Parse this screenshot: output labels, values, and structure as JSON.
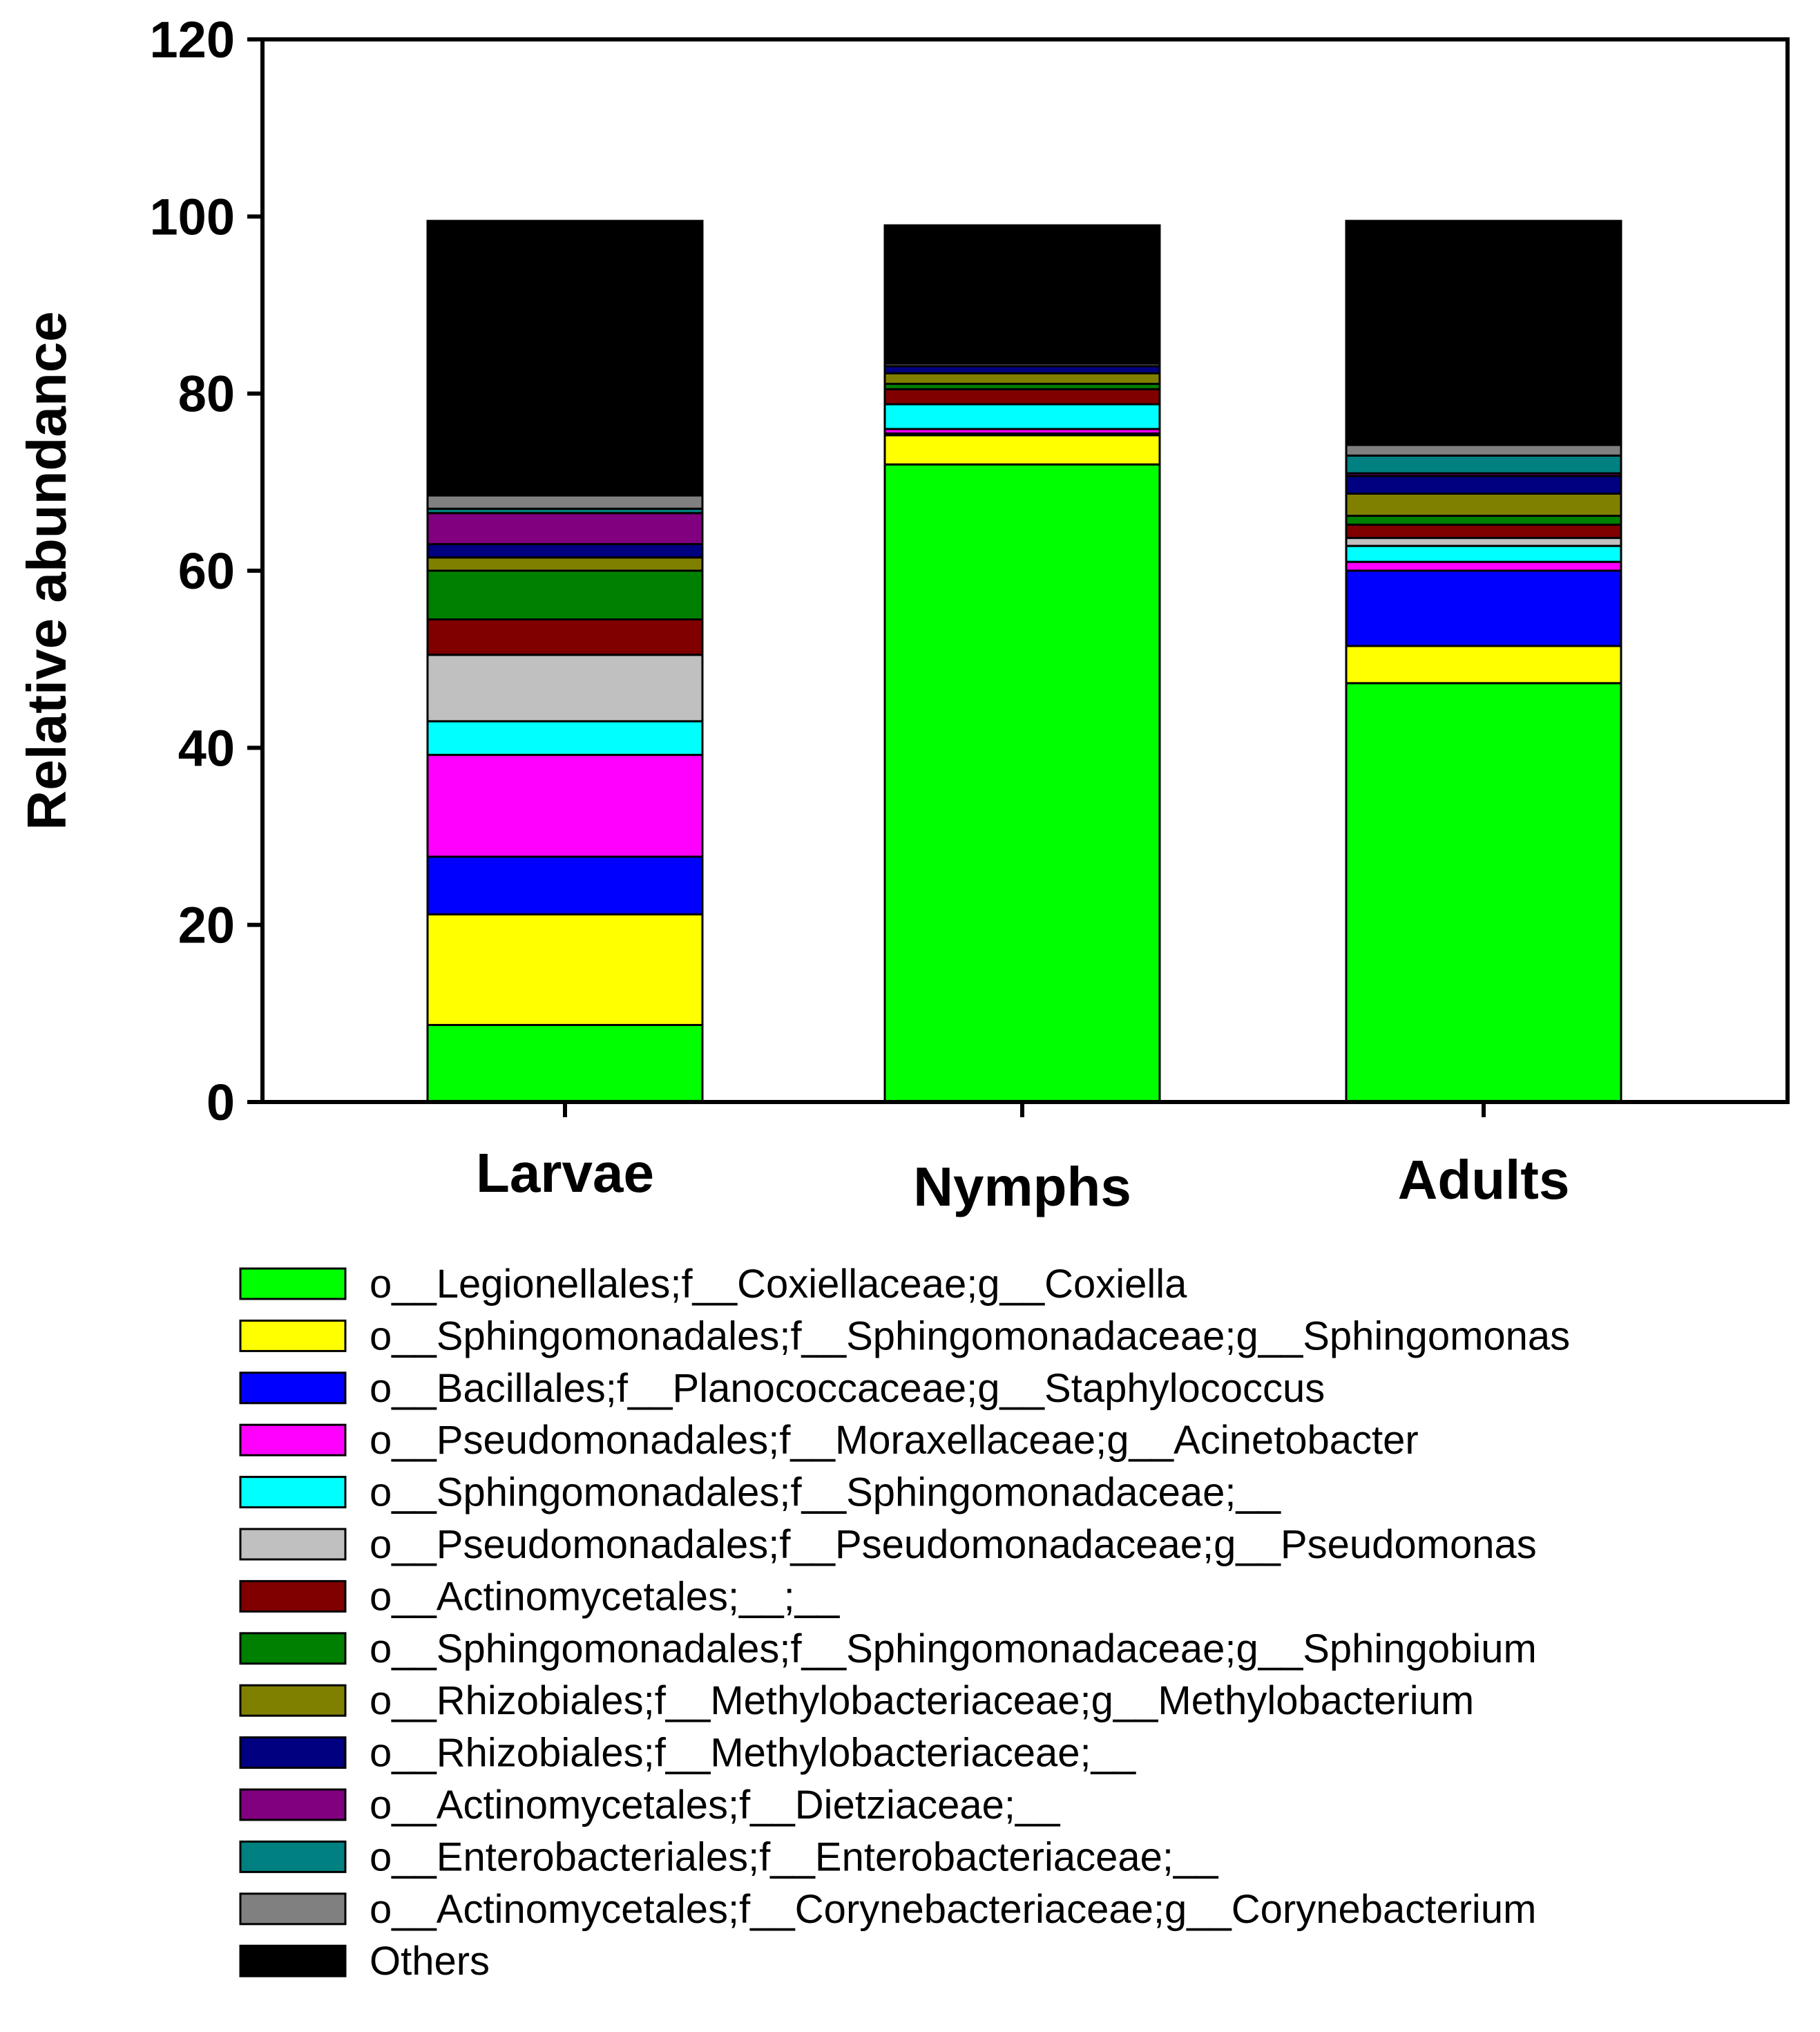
{
  "chart_data": {
    "type": "bar",
    "stacked": true,
    "title": "",
    "xlabel": "",
    "ylabel": "Relative abundance",
    "ylim": [
      0,
      120
    ],
    "yticks": [
      0,
      20,
      40,
      60,
      80,
      100,
      120
    ],
    "categories": [
      "Larvae",
      "Nymphs",
      "Adults"
    ],
    "legend_position": "bottom",
    "series": [
      {
        "name": "o__Legionellales;f__Coxiellaceae;g__Coxiella",
        "color": "#00ff00",
        "values": [
          8.7,
          72.0,
          47.3
        ]
      },
      {
        "name": "o__Sphingomonadales;f__Sphingomonadaceae;g__Sphingomonas",
        "color": "#ffff00",
        "values": [
          12.5,
          3.3,
          4.2
        ]
      },
      {
        "name": "o__Bacillales;f__Planococcaceae;g__Staphylococcus",
        "color": "#0000ff",
        "values": [
          6.5,
          0.2,
          8.5
        ]
      },
      {
        "name": "o__Pseudomonadales;f__Moraxellaceae;g__Acinetobacter",
        "color": "#ff00ff",
        "values": [
          11.5,
          0.5,
          1.0
        ]
      },
      {
        "name": "o__Sphingomonadales;f__Sphingomonadaceae;__",
        "color": "#00ffff",
        "values": [
          3.8,
          2.8,
          1.8
        ]
      },
      {
        "name": "o__Pseudomonadales;f__Pseudomonadaceae;g__Pseudomonas",
        "color": "#c0c0c0",
        "values": [
          7.5,
          0.0,
          0.9
        ]
      },
      {
        "name": "o__Actinomycetales;__;__",
        "color": "#800000",
        "values": [
          4.0,
          1.7,
          1.5
        ]
      },
      {
        "name": "o__Sphingomonadales;f__Sphingomonadaceae;g__Sphingobium",
        "color": "#008000",
        "values": [
          5.5,
          0.6,
          1.0
        ]
      },
      {
        "name": "o__Rhizobiales;f__Methylobacteriaceae;g__Methylobacterium",
        "color": "#808000",
        "values": [
          1.5,
          1.2,
          2.5
        ]
      },
      {
        "name": "o__Rhizobiales;f__Methylobacteriaceae;__",
        "color": "#000080",
        "values": [
          1.5,
          0.8,
          2.0
        ]
      },
      {
        "name": "o__Actinomycetales;f__Dietziaceae;__",
        "color": "#800080",
        "values": [
          3.5,
          0.0,
          0.3
        ]
      },
      {
        "name": "o__Enterobacteriales;f__Enterobacteriaceae;__",
        "color": "#008080",
        "values": [
          0.5,
          0.0,
          2.0
        ]
      },
      {
        "name": "o__Actinomycetales;f__Corynebacteriaceae;g__Corynebacterium",
        "color": "#808080",
        "values": [
          1.5,
          0.3,
          1.2
        ]
      },
      {
        "name": "Others",
        "color": "#000000",
        "values": [
          31.0,
          15.6,
          25.3
        ]
      }
    ]
  }
}
